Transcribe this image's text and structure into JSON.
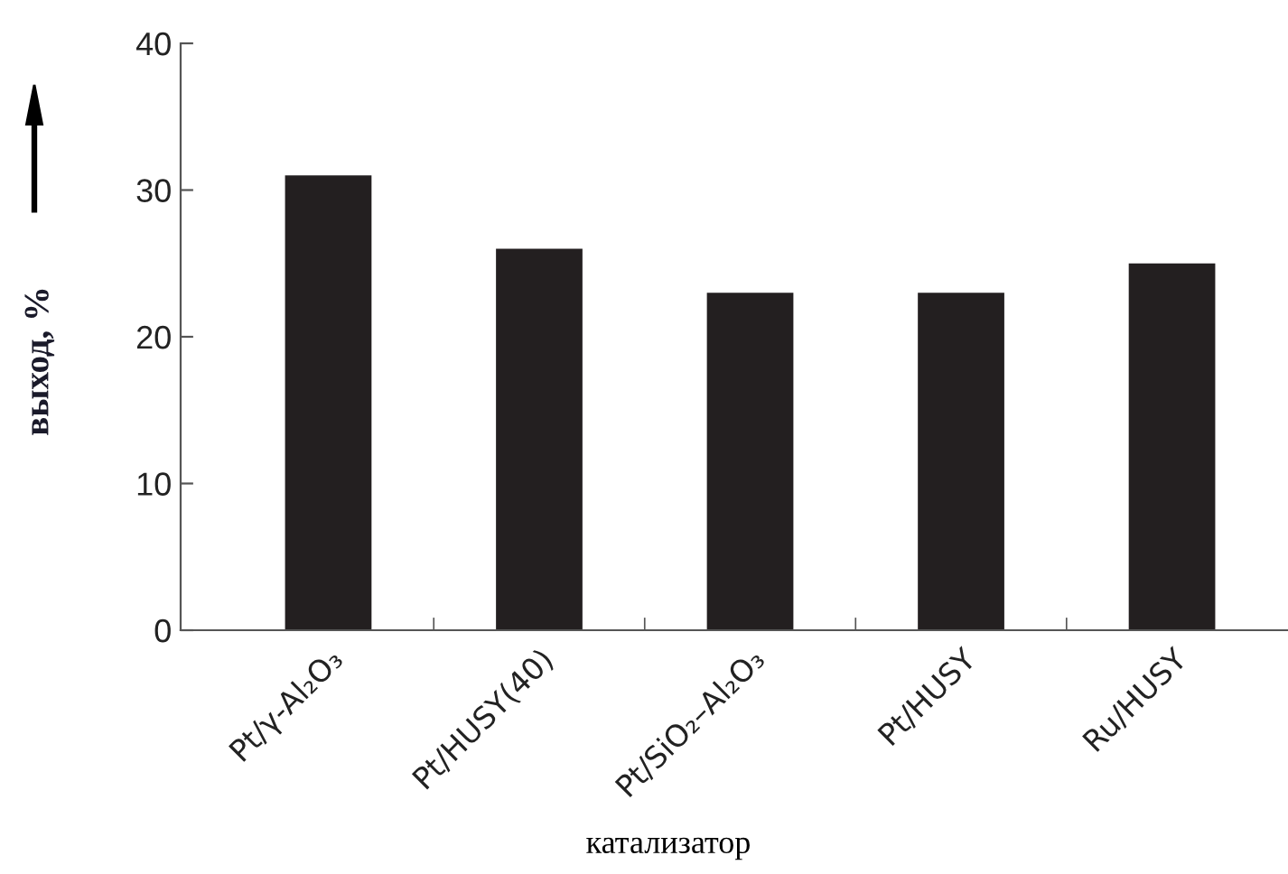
{
  "chart_data": {
    "type": "bar",
    "categories": [
      "Pt/γ-Al₂O₃",
      "Pt/HUSY(40)",
      "Pt/SiO₂–Al₂O₃",
      "Pt/HUSY",
      "Ru/HUSY"
    ],
    "values": [
      31,
      26,
      23,
      23,
      25
    ],
    "color": "#231f20",
    "xlabel": "катализатор",
    "ylabel": "выход, %",
    "ylim": [
      0,
      40
    ],
    "yticks": [
      0,
      10,
      20,
      30,
      40
    ],
    "grid": false
  }
}
